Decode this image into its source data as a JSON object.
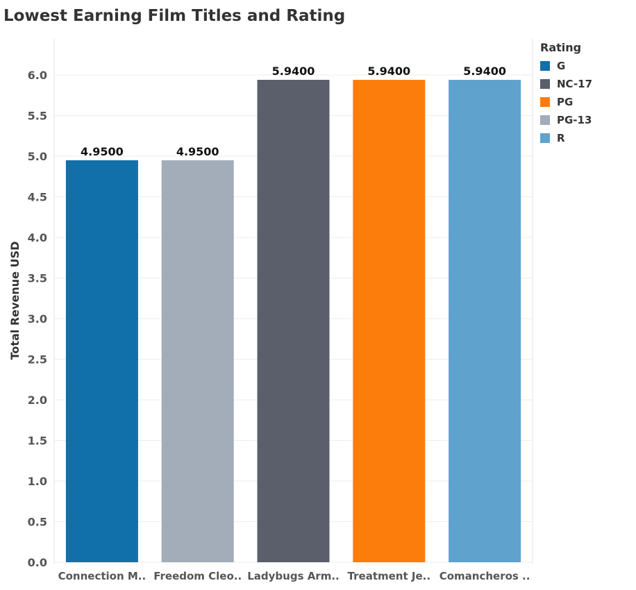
{
  "chart_data": {
    "type": "bar",
    "title": "Lowest Earning Film Titles and Rating",
    "xlabel": "",
    "ylabel": "Total Revenue USD",
    "ylim": [
      0,
      6.0
    ],
    "yticks": [
      "0.0",
      "0.5",
      "1.0",
      "1.5",
      "2.0",
      "2.5",
      "3.0",
      "3.5",
      "4.0",
      "4.5",
      "5.0",
      "5.5",
      "6.0"
    ],
    "categories": [
      "Connection M..",
      "Freedom Cleo..",
      "Ladybugs Arm..",
      "Treatment Je..",
      "Comancheros .."
    ],
    "values": [
      4.95,
      4.95,
      5.94,
      5.94,
      5.94
    ],
    "data_labels": [
      "4.9500",
      "4.9500",
      "5.9400",
      "5.9400",
      "5.9400"
    ],
    "ratings": [
      "G",
      "PG-13",
      "NC-17",
      "PG",
      "R"
    ],
    "grid": true,
    "legend": {
      "title": "Rating",
      "position": "top-right",
      "items": [
        {
          "label": "G",
          "color": "#1170aa"
        },
        {
          "label": "NC-17",
          "color": "#5a5f6b"
        },
        {
          "label": "PG",
          "color": "#fc7d0b"
        },
        {
          "label": "PG-13",
          "color": "#a3acb9"
        },
        {
          "label": "R",
          "color": "#5fa2ce"
        }
      ]
    }
  }
}
